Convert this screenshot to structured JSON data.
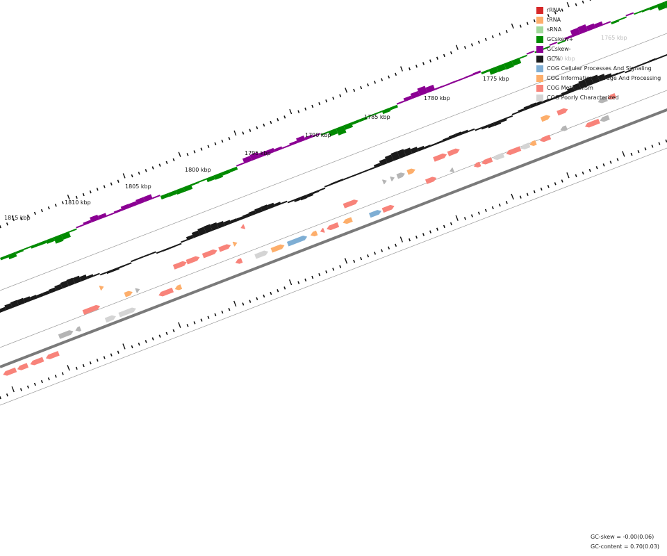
{
  "legend": [
    {
      "label": "rRNA",
      "color": "#d62728"
    },
    {
      "label": "tRNA",
      "color": "#fdae6b"
    },
    {
      "label": "sRNA",
      "color": "#a1d99b"
    },
    {
      "label": "GCskew+",
      "color": "#008a00"
    },
    {
      "label": "GCskew-",
      "color": "#8b0093"
    },
    {
      "label": "GC%",
      "color": "#1a1a1a"
    },
    {
      "label": "COG Cellular Processes And Signaling",
      "color": "#7eaed4"
    },
    {
      "label": "COG Information Storage And Processing",
      "color": "#fdae6b"
    },
    {
      "label": "COG Metabolism",
      "color": "#f8837a"
    },
    {
      "label": "COG Poorly Characterized",
      "color": "#d4d4d4"
    }
  ],
  "colors": {
    "gc_skew_pos": "#008a00",
    "gc_skew_neg": "#8b0093",
    "gc_content": "#1a1a1a",
    "backbone": "#7a7a7a",
    "gene_gray": "#b5b5b5"
  },
  "ticks": [
    "1765 kbp",
    "1770 kbp",
    "1775 kbp",
    "1780 kbp",
    "1785 kbp",
    "1790 kbp",
    "1795 kbp",
    "1800 kbp",
    "1805 kbp",
    "1810 kbp",
    "1815 kbp"
  ],
  "stats": {
    "gc_skew": "GC-skew = -0.00(0.06)",
    "gc_content": "GC-content = 0.70(0.03)"
  }
}
